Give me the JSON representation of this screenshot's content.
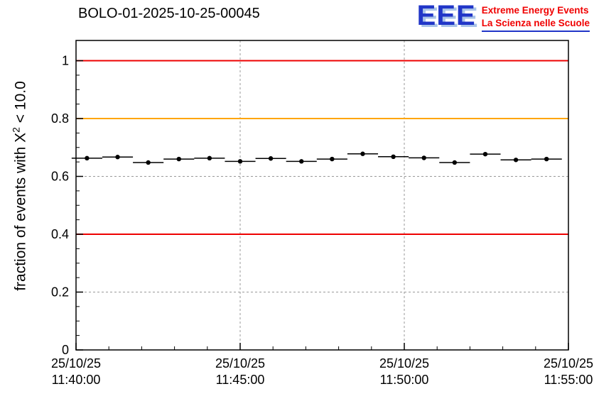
{
  "header": {
    "title": "BOLO-01-2025-10-25-00045"
  },
  "logo": {
    "acronym": "EEE",
    "tagline_line1": "Extreme Energy Events",
    "tagline_line2": "La Scienza nelle Scuole",
    "acronym_color": "#2136c8",
    "tagline_color": "#f00000"
  },
  "chart_data": {
    "type": "scatter",
    "title": "BOLO-01-2025-10-25-00045",
    "ylabel": "fraction of events with X² < 10.0",
    "ylabel_parts": {
      "prefix": "fraction of events with X",
      "sup": "2",
      "suffix": " < 10.0"
    },
    "xlabel": "",
    "ylim": [
      0,
      1.07
    ],
    "yticks": [
      0,
      0.2,
      0.4,
      0.6,
      0.8,
      1
    ],
    "ytick_labels": [
      "0",
      "0.2",
      "0.4",
      "0.6",
      "0.8",
      "1"
    ],
    "x_unit": "seconds since 25/10/25 11:40:00",
    "x_range_seconds": [
      0,
      900
    ],
    "xticks_seconds": [
      0,
      300,
      600,
      900
    ],
    "xtick_labels": [
      [
        "25/10/25",
        "11:40:00"
      ],
      [
        "25/10/25",
        "11:45:00"
      ],
      [
        "25/10/25",
        "11:50:00"
      ],
      [
        "25/10/25",
        "11:55:00"
      ]
    ],
    "grid": true,
    "grid_color": "#999999",
    "legend": "none",
    "reference_lines": [
      {
        "y": 1.0,
        "color": "#ee0000"
      },
      {
        "y": 0.8,
        "color": "#ffa500"
      },
      {
        "y": 0.4,
        "color": "#ee0000"
      }
    ],
    "points": {
      "marker": "circle",
      "marker_color": "#000000",
      "x_seconds": [
        20,
        76,
        132,
        188,
        244,
        300,
        356,
        412,
        468,
        524,
        580,
        636,
        692,
        748,
        804,
        860
      ],
      "y": [
        0.663,
        0.667,
        0.648,
        0.66,
        0.663,
        0.652,
        0.662,
        0.652,
        0.66,
        0.678,
        0.668,
        0.664,
        0.648,
        0.677,
        0.657,
        0.66
      ],
      "x_err_seconds": 28,
      "y_err": 0.004
    }
  }
}
